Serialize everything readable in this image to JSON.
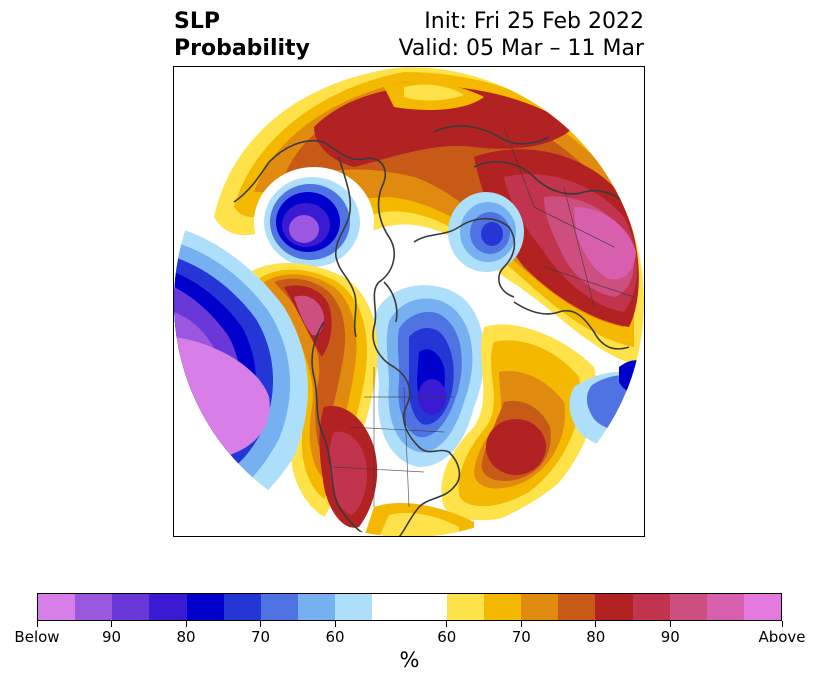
{
  "header": {
    "variable": "SLP",
    "product": "Probability",
    "init": "Init: Fri 25 Feb 2022",
    "valid": "Valid: 05 Mar – 11 Mar"
  },
  "colorbar": {
    "unit": "%",
    "colors": [
      "#d87ee8",
      "#9b57e0",
      "#6a38d9",
      "#3a1ad2",
      "#0000cc",
      "#2536d7",
      "#4f73e3",
      "#77b0f0",
      "#aedffa",
      "#ffffff",
      "#ffffff",
      "#ffe24a",
      "#f4b800",
      "#e08a10",
      "#c85a18",
      "#b22222",
      "#c2334d",
      "#cc4f80",
      "#d85fae",
      "#e47ae0"
    ],
    "tick_labels": [
      "Below",
      "90",
      "80",
      "70",
      "60",
      "60",
      "70",
      "80",
      "90",
      "Above"
    ]
  },
  "map": {
    "projection": "polar stereographic (North Pole)",
    "regions": [
      {
        "name": "north-pacific-low",
        "category": "Below",
        "color": "#d87ee8"
      },
      {
        "name": "hudson-bay-low",
        "category": "Below 90",
        "color": "#9b57e0"
      },
      {
        "name": "eastern-north-america-low",
        "category": "Below 90",
        "color": "#0000cc"
      },
      {
        "name": "siberian-low",
        "category": "Below 70",
        "color": "#4f73e3"
      },
      {
        "name": "north-atlantic-low",
        "category": "Below 70",
        "color": "#4f73e3"
      },
      {
        "name": "arctic-high",
        "category": "Above 70",
        "color": "#c85a18"
      },
      {
        "name": "alaska-high",
        "category": "Above 90",
        "color": "#cc4f80"
      },
      {
        "name": "eurasia-high",
        "category": "Above 90",
        "color": "#cc4f80"
      },
      {
        "name": "western-us-high",
        "category": "Above 90",
        "color": "#c2334d"
      },
      {
        "name": "atlantic-high",
        "category": "Above 80",
        "color": "#b22222"
      }
    ]
  }
}
